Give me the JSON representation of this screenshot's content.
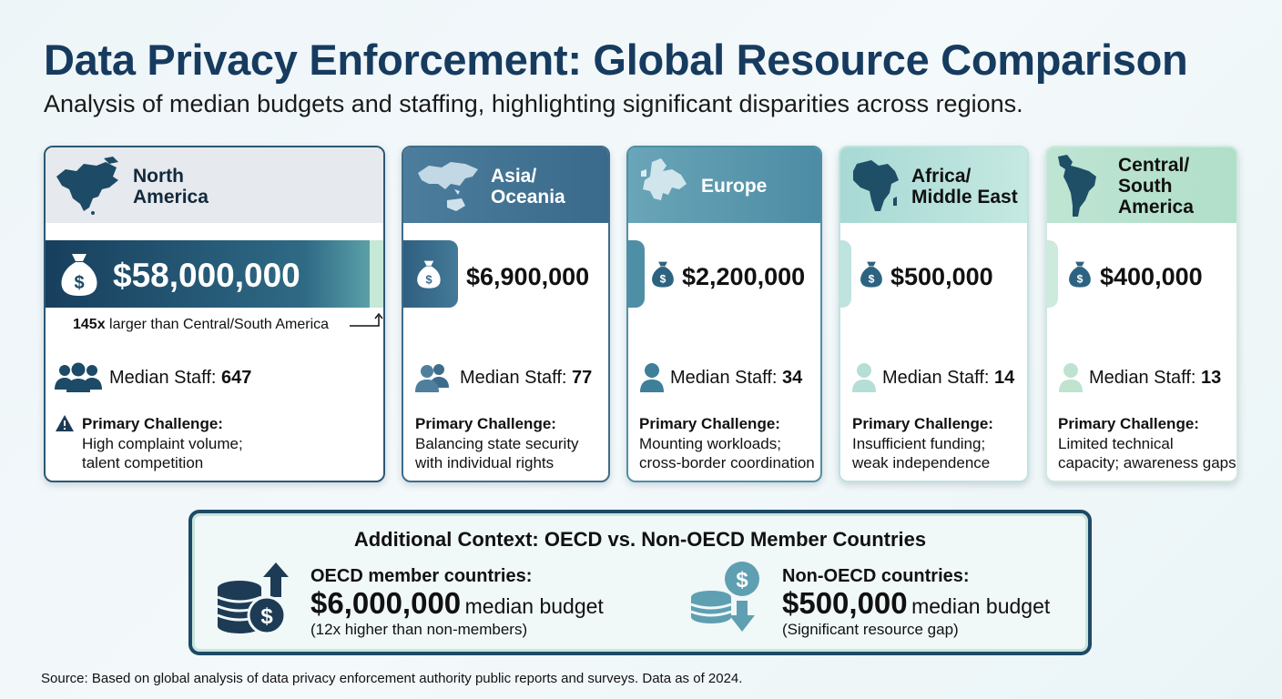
{
  "title": "Data Privacy Enforcement: Global Resource Comparison",
  "subtitle": "Analysis of median budgets and staffing, highlighting significant disparities across regions.",
  "regions": [
    {
      "name_line1": "North",
      "name_line2": "America",
      "budget": "$58,000,000",
      "comparison_multiplier": "145x",
      "comparison_text": "larger than Central/South America",
      "staff_label": "Median Staff:",
      "staff_value": "647",
      "challenge_label": "Primary Challenge:",
      "challenge_line1": "High complaint volume;",
      "challenge_line2": "talent competition",
      "icon": "north-america-map-icon"
    },
    {
      "name_line1": "Asia/",
      "name_line2": "Oceania",
      "budget": "$6,900,000",
      "staff_label": "Median Staff:",
      "staff_value": "77",
      "challenge_label": "Primary Challenge:",
      "challenge_line1": "Balancing state security",
      "challenge_line2": "with individual rights",
      "icon": "asia-oceania-map-icon"
    },
    {
      "name_line1": "Europe",
      "name_line2": "",
      "budget": "$2,200,000",
      "staff_label": "Median Staff:",
      "staff_value": "34",
      "challenge_label": "Primary Challenge:",
      "challenge_line1": "Mounting workloads;",
      "challenge_line2": "cross-border coordination",
      "icon": "europe-map-icon"
    },
    {
      "name_line1": "Africa/",
      "name_line2": "Middle East",
      "budget": "$500,000",
      "staff_label": "Median Staff:",
      "staff_value": "14",
      "challenge_label": "Primary Challenge:",
      "challenge_line1": "Insufficient funding;",
      "challenge_line2": "weak independence",
      "icon": "africa-map-icon"
    },
    {
      "name_line1": "Central/",
      "name_line2": "South",
      "name_line3": "America",
      "budget": "$400,000",
      "staff_label": "Median Staff:",
      "staff_value": "13",
      "challenge_label": "Primary Challenge:",
      "challenge_line1": "Limited technical",
      "challenge_line2": "capacity; awareness gaps",
      "icon": "south-america-map-icon"
    }
  ],
  "context": {
    "title": "Additional Context: OECD vs. Non-OECD Member Countries",
    "oecd": {
      "label": "OECD member countries:",
      "value": "$6,000,000",
      "unit": "median budget",
      "note": "(12x higher than non-members)",
      "icon": "coins-up-arrow-icon"
    },
    "non_oecd": {
      "label": "Non-OECD countries:",
      "value": "$500,000",
      "unit": "median budget",
      "note": "(Significant resource gap)",
      "icon": "coins-down-arrow-icon"
    }
  },
  "source": "Source: Based on global analysis of data privacy enforcement authority public reports and surveys. Data as of 2024.",
  "colors": {
    "title": "#163b5f",
    "north_america": "#1d4a66",
    "asia_oceania": "#3e6d8c",
    "europe": "#4f8fa5",
    "africa_middle_east": "#9fd3d0",
    "central_south_america": "#b5e0cf"
  }
}
